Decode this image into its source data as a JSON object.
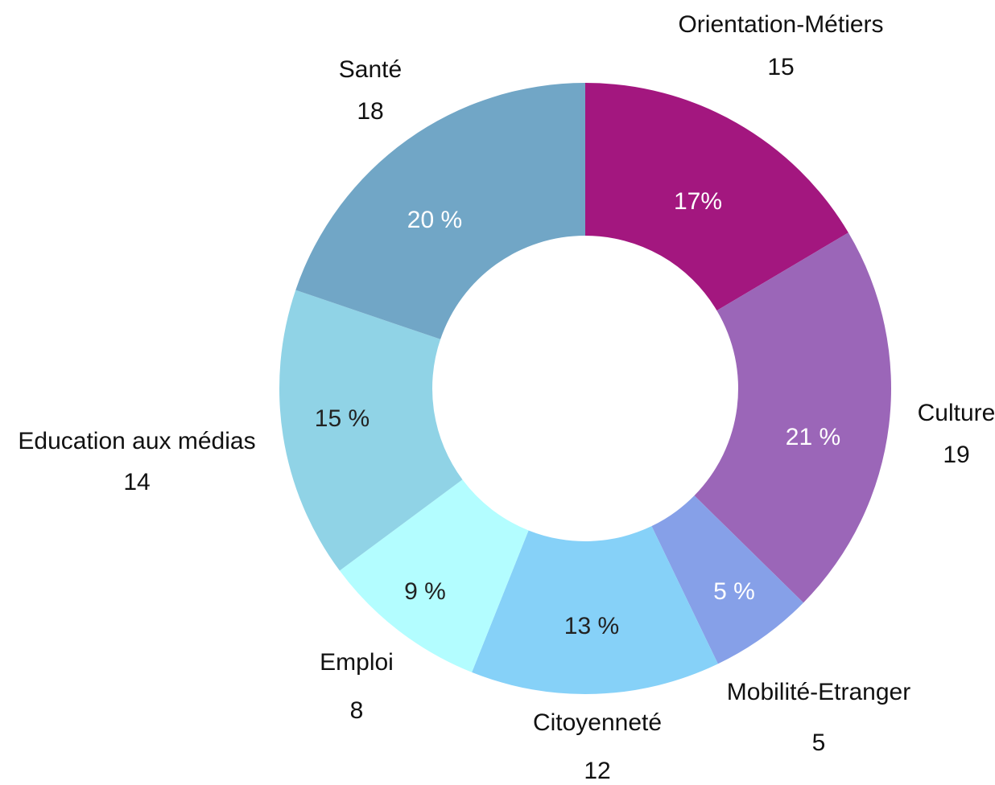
{
  "chart_data": {
    "type": "donut",
    "categories": [
      "Orientation-Métiers",
      "Culture",
      "Mobilité-Etranger",
      "Citoyenneté",
      "Emploi",
      "Education aux médias",
      "Santé"
    ],
    "values": [
      15,
      19,
      5,
      12,
      8,
      14,
      18
    ],
    "percent_labels": [
      "17%",
      "21 %",
      "5 %",
      "13 %",
      "9 %",
      "15 %",
      "20 %"
    ],
    "colors": [
      "#a3177f",
      "#9b66b8",
      "#86a0e8",
      "#86d1f8",
      "#b3fdff",
      "#90d3e6",
      "#71a6c6"
    ]
  }
}
